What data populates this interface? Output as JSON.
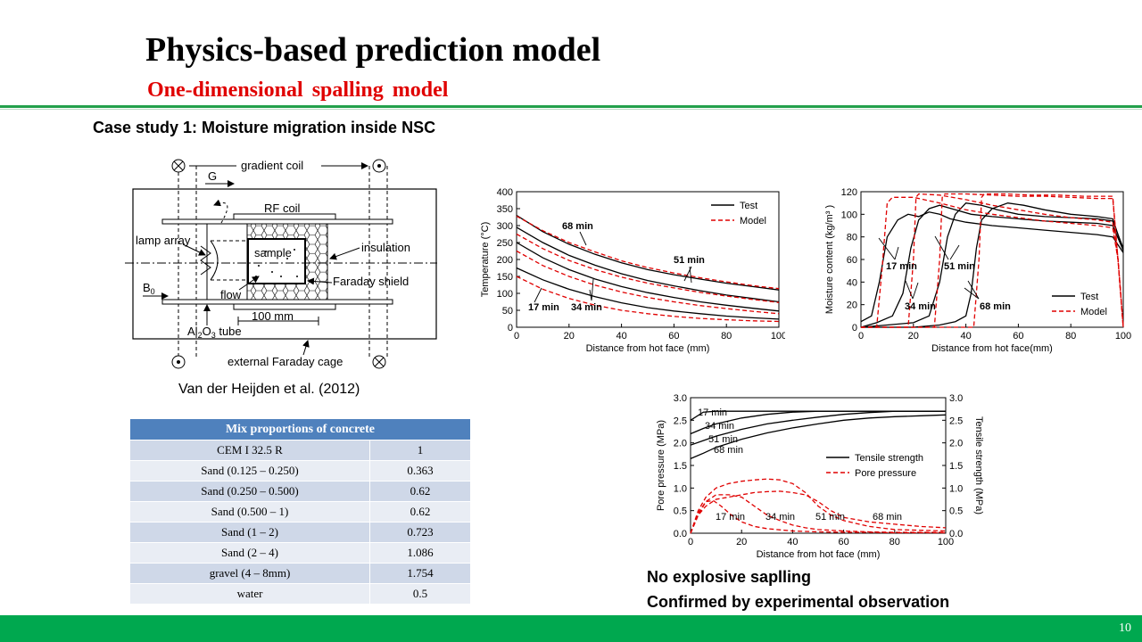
{
  "slide": {
    "title": "Physics-based prediction model",
    "subtitle": "One-dimensional spalling model",
    "case_title": "Case study 1: Moisture migration inside NSC",
    "citation": "Van der Heijden et al. (2012)",
    "conclusion_1": "No explosive saplling",
    "conclusion_2": "Confirmed by experimental observation",
    "page_number": "10",
    "colors": {
      "accent_green": "#00a84f",
      "subtitle_red": "#e00000",
      "table_header": "#4f81bd"
    }
  },
  "diagram": {
    "labels": {
      "gradient_coil": "gradient coil",
      "g": "G",
      "rf_coil": "RF coil",
      "lamp_array": "lamp array",
      "sample": "sample",
      "insulation": "insulation",
      "b0": "B",
      "b0_sub": "0",
      "flow": "flow",
      "faraday_shield": "Faraday shield",
      "dim": "100 mm",
      "tube_a": "Al",
      "tube_sub2": "2",
      "tube_b": "O",
      "tube_sub3": "3",
      "tube_c": " tube",
      "cage": "external Faraday cage"
    }
  },
  "table": {
    "header": "Mix proportions of concrete",
    "rows": [
      {
        "name": "CEM I 32.5 R",
        "value": "1"
      },
      {
        "name": "Sand (0.125 – 0.250)",
        "value": "0.363"
      },
      {
        "name": "Sand (0.250 – 0.500)",
        "value": "0.62"
      },
      {
        "name": "Sand (0.500 – 1)",
        "value": "0.62"
      },
      {
        "name": "Sand (1 – 2)",
        "value": "0.723"
      },
      {
        "name": "Sand (2 – 4)",
        "value": "1.086"
      },
      {
        "name": "gravel  (4 – 8mm)",
        "value": "1.754"
      },
      {
        "name": "water",
        "value": "0.5"
      }
    ]
  },
  "chart_data": [
    {
      "type": "line",
      "xlabel": "Distance from hot face (mm)",
      "ylabel": "Temperature (°C)",
      "xlim": [
        0,
        100
      ],
      "ylim": [
        0,
        400
      ],
      "xticks": [
        0,
        20,
        40,
        60,
        80,
        100
      ],
      "yticks": [
        0,
        50,
        100,
        150,
        200,
        250,
        300,
        350,
        400
      ],
      "legend": [
        "Test",
        "Model"
      ],
      "legend_position": "top-right",
      "annotations": [
        "68 min",
        "51 min",
        "17 min",
        "34 min"
      ],
      "series": [
        {
          "name": "Test",
          "x": [
            0,
            10,
            20,
            30,
            40,
            50,
            60,
            70,
            80,
            90,
            100
          ],
          "y": [
            330,
            282,
            245,
            215,
            190,
            170,
            155,
            142,
            130,
            120,
            110
          ]
        },
        {
          "name": "Test",
          "x": [
            0,
            10,
            20,
            30,
            40,
            50,
            60,
            70,
            80,
            90,
            100
          ],
          "y": [
            295,
            250,
            212,
            183,
            158,
            138,
            122,
            108,
            95,
            85,
            75
          ]
        },
        {
          "name": "Test",
          "x": [
            0,
            10,
            20,
            30,
            40,
            50,
            60,
            70,
            80,
            90,
            100
          ],
          "y": [
            250,
            205,
            170,
            142,
            120,
            102,
            88,
            75,
            65,
            56,
            48
          ]
        },
        {
          "name": "Test",
          "x": [
            0,
            10,
            20,
            30,
            40,
            50,
            60,
            70,
            80,
            90,
            100
          ],
          "y": [
            175,
            140,
            112,
            90,
            72,
            58,
            48,
            40,
            33,
            28,
            24
          ]
        },
        {
          "name": "Model",
          "x": [
            0,
            10,
            20,
            30,
            40,
            50,
            60,
            70,
            80,
            90,
            100
          ],
          "y": [
            328,
            285,
            250,
            222,
            196,
            176,
            160,
            146,
            134,
            123,
            114
          ]
        },
        {
          "name": "Model",
          "x": [
            0,
            10,
            20,
            30,
            40,
            50,
            60,
            70,
            80,
            90,
            100
          ],
          "y": [
            275,
            232,
            197,
            170,
            148,
            130,
            116,
            103,
            92,
            82,
            73
          ]
        },
        {
          "name": "Model",
          "x": [
            0,
            10,
            20,
            30,
            40,
            50,
            60,
            70,
            80,
            90,
            100
          ],
          "y": [
            225,
            182,
            150,
            124,
            104,
            88,
            75,
            64,
            55,
            47,
            40
          ]
        },
        {
          "name": "Model",
          "x": [
            0,
            10,
            20,
            30,
            40,
            50,
            60,
            70,
            80,
            90,
            100
          ],
          "y": [
            150,
            112,
            85,
            65,
            50,
            40,
            32,
            26,
            22,
            19,
            17
          ]
        }
      ]
    },
    {
      "type": "line",
      "xlabel": "Distance from hot face(mm)",
      "ylabel": "Moisture content (kg/m³ )",
      "xlim": [
        0,
        100
      ],
      "ylim": [
        0,
        120
      ],
      "xticks": [
        0,
        20,
        40,
        60,
        80,
        100
      ],
      "yticks": [
        0,
        20,
        40,
        60,
        80,
        100,
        120
      ],
      "legend": [
        "Test",
        "Model"
      ],
      "legend_position": "bottom-right",
      "annotations": [
        "17 min",
        "51 min",
        "34 min",
        "68 min"
      ],
      "series": [
        {
          "name": "Test",
          "x": [
            0,
            4,
            7,
            10,
            14,
            18,
            22,
            26,
            30,
            34,
            40,
            50,
            60,
            70,
            80,
            90,
            96,
            100
          ],
          "y": [
            5,
            10,
            40,
            80,
            95,
            100,
            98,
            102,
            100,
            96,
            93,
            90,
            88,
            86,
            84,
            82,
            80,
            66
          ]
        },
        {
          "name": "Test",
          "x": [
            0,
            6,
            12,
            16,
            19,
            22,
            26,
            30,
            36,
            42,
            50,
            60,
            70,
            80,
            90,
            96,
            100
          ],
          "y": [
            0,
            4,
            10,
            30,
            70,
            95,
            105,
            108,
            104,
            100,
            98,
            96,
            94,
            93,
            92,
            90,
            68
          ]
        },
        {
          "name": "Test",
          "x": [
            0,
            10,
            20,
            26,
            30,
            33,
            36,
            40,
            46,
            52,
            60,
            70,
            80,
            90,
            96,
            100
          ],
          "y": [
            0,
            2,
            4,
            10,
            40,
            80,
            100,
            110,
            108,
            104,
            100,
            98,
            97,
            96,
            94,
            70
          ]
        },
        {
          "name": "Test",
          "x": [
            0,
            20,
            30,
            36,
            40,
            42,
            44,
            46,
            50,
            56,
            62,
            70,
            80,
            90,
            96,
            100
          ],
          "y": [
            0,
            0,
            2,
            5,
            10,
            30,
            70,
            95,
            105,
            110,
            108,
            104,
            100,
            98,
            96,
            68
          ]
        },
        {
          "name": "Model",
          "x": [
            0,
            6,
            8,
            10,
            12,
            20,
            30,
            40,
            50,
            60,
            70,
            80,
            90,
            96,
            98,
            100
          ],
          "y": [
            0,
            0,
            50,
            110,
            115,
            115,
            110,
            104,
            100,
            97,
            94,
            92,
            90,
            88,
            60,
            0
          ]
        },
        {
          "name": "Model",
          "x": [
            0,
            18,
            20,
            21,
            22,
            30,
            40,
            50,
            60,
            70,
            80,
            90,
            96,
            98,
            100
          ],
          "y": [
            0,
            0,
            60,
            115,
            118,
            117,
            113,
            108,
            104,
            100,
            97,
            95,
            93,
            60,
            0
          ]
        },
        {
          "name": "Model",
          "x": [
            0,
            28,
            30,
            31,
            32,
            40,
            50,
            60,
            70,
            80,
            90,
            96,
            98,
            100
          ],
          "y": [
            0,
            0,
            60,
            115,
            118,
            118,
            117,
            116,
            116,
            115,
            114,
            114,
            60,
            0
          ]
        },
        {
          "name": "Model",
          "x": [
            0,
            43,
            45,
            46,
            47,
            55,
            65,
            75,
            85,
            92,
            96,
            98,
            100
          ],
          "y": [
            0,
            0,
            60,
            115,
            118,
            118,
            117,
            117,
            116,
            116,
            116,
            60,
            0
          ]
        }
      ]
    },
    {
      "type": "line",
      "xlabel": "Distance from hot face (mm)",
      "ylabel": "Pore pressure (MPa)",
      "y2label": "Tensile strength (MPa)",
      "xlim": [
        0,
        100
      ],
      "ylim": [
        0,
        3.0
      ],
      "xticks": [
        0,
        20,
        40,
        60,
        80,
        100
      ],
      "yticks": [
        "0.0",
        "0.5",
        "1.0",
        "1.5",
        "2.0",
        "2.5",
        "3.0"
      ],
      "legend": [
        "Tensile strength",
        "Pore pressure"
      ],
      "legend_position": "right",
      "annotations": [
        "17 min",
        "34 min",
        "51 min",
        "68 min",
        "17 min",
        "34 min",
        "51 min",
        "68 min"
      ],
      "series": [
        {
          "name": "Tensile strength",
          "x": [
            0,
            5,
            10,
            20,
            30,
            40,
            50,
            60,
            70,
            80,
            90,
            100
          ],
          "y": [
            2.5,
            2.68,
            2.7,
            2.7,
            2.7,
            2.7,
            2.7,
            2.7,
            2.7,
            2.7,
            2.7,
            2.7
          ]
        },
        {
          "name": "Tensile strength",
          "x": [
            0,
            5,
            10,
            20,
            30,
            40,
            50,
            60,
            70,
            80,
            90,
            100
          ],
          "y": [
            2.2,
            2.32,
            2.42,
            2.55,
            2.63,
            2.68,
            2.7,
            2.7,
            2.7,
            2.7,
            2.7,
            2.7
          ]
        },
        {
          "name": "Tensile strength",
          "x": [
            0,
            5,
            10,
            20,
            30,
            40,
            50,
            60,
            70,
            80,
            90,
            100
          ],
          "y": [
            1.95,
            2.05,
            2.15,
            2.3,
            2.42,
            2.5,
            2.57,
            2.63,
            2.67,
            2.7,
            2.7,
            2.7
          ]
        },
        {
          "name": "Tensile strength",
          "x": [
            0,
            5,
            10,
            20,
            30,
            40,
            50,
            60,
            70,
            80,
            90,
            100
          ],
          "y": [
            1.65,
            1.77,
            1.9,
            2.08,
            2.22,
            2.33,
            2.42,
            2.5,
            2.55,
            2.58,
            2.6,
            2.62
          ]
        },
        {
          "name": "Pore pressure",
          "x": [
            0,
            3,
            6,
            9,
            12,
            16,
            20,
            25,
            30,
            40,
            50,
            60,
            70,
            80,
            90,
            100
          ],
          "y": [
            0,
            0.45,
            0.7,
            0.72,
            0.6,
            0.4,
            0.25,
            0.15,
            0.1,
            0.05,
            0.03,
            0.02,
            0.02,
            0.01,
            0.01,
            0.01
          ]
        },
        {
          "name": "Pore pressure",
          "x": [
            0,
            3,
            6,
            10,
            15,
            20,
            25,
            30,
            35,
            40,
            45,
            50,
            60,
            70,
            80,
            100
          ],
          "y": [
            0,
            0.4,
            0.7,
            0.85,
            0.85,
            0.8,
            0.6,
            0.4,
            0.28,
            0.18,
            0.12,
            0.08,
            0.05,
            0.03,
            0.02,
            0.02
          ]
        },
        {
          "name": "Pore pressure",
          "x": [
            0,
            3,
            6,
            10,
            15,
            20,
            25,
            30,
            35,
            40,
            45,
            50,
            55,
            60,
            70,
            80,
            100
          ],
          "y": [
            0,
            0.5,
            0.8,
            1.0,
            1.1,
            1.15,
            1.18,
            1.2,
            1.18,
            1.1,
            0.9,
            0.6,
            0.4,
            0.28,
            0.15,
            0.08,
            0.05
          ]
        },
        {
          "name": "Pore pressure",
          "x": [
            0,
            3,
            6,
            10,
            15,
            20,
            25,
            30,
            35,
            40,
            45,
            50,
            55,
            60,
            70,
            80,
            90,
            100
          ],
          "y": [
            0,
            0.4,
            0.6,
            0.75,
            0.8,
            0.85,
            0.9,
            0.92,
            0.93,
            0.9,
            0.85,
            0.7,
            0.5,
            0.35,
            0.25,
            0.2,
            0.15,
            0.12
          ]
        }
      ]
    }
  ]
}
